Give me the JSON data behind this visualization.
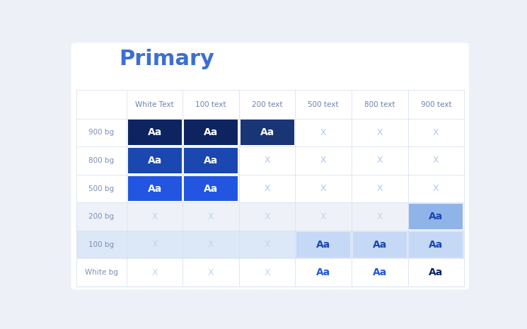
{
  "title": "Primary",
  "title_color": "#3b6fd4",
  "col_headers": [
    "White Text",
    "100 text",
    "200 text",
    "500 text",
    "800 text",
    "900 text"
  ],
  "row_headers": [
    "900 bg",
    "800 bg",
    "500 bg",
    "200 bg",
    "100 bg",
    "White bg"
  ],
  "background": "#edf1f7",
  "table_bg": "#ffffff",
  "grid_color": "#d8e3f0",
  "header_text_color": "#6b82aa",
  "row_label_color": "#7b90b5",
  "cells": [
    [
      {
        "type": "aa",
        "bg": "#0d2461",
        "text_color": "#ffffff"
      },
      {
        "type": "aa",
        "bg": "#0d2461",
        "text_color": "#ffffff"
      },
      {
        "type": "aa",
        "bg": "#1a3575",
        "text_color": "#ffffff"
      },
      {
        "type": "x",
        "bg": null,
        "text_color": "#b0c8e8"
      },
      {
        "type": "x",
        "bg": null,
        "text_color": "#b0c8e8"
      },
      {
        "type": "x",
        "bg": null,
        "text_color": "#b0c8e8"
      }
    ],
    [
      {
        "type": "aa",
        "bg": "#1a47b0",
        "text_color": "#ffffff"
      },
      {
        "type": "aa",
        "bg": "#1a47b0",
        "text_color": "#ffffff"
      },
      {
        "type": "x",
        "bg": null,
        "text_color": "#b0c8e8"
      },
      {
        "type": "x",
        "bg": null,
        "text_color": "#b0c8e8"
      },
      {
        "type": "x",
        "bg": null,
        "text_color": "#b0c8e8"
      },
      {
        "type": "x",
        "bg": null,
        "text_color": "#b0c8e8"
      }
    ],
    [
      {
        "type": "aa",
        "bg": "#2255e0",
        "text_color": "#ffffff"
      },
      {
        "type": "aa",
        "bg": "#2255e0",
        "text_color": "#ffffff"
      },
      {
        "type": "x",
        "bg": null,
        "text_color": "#b0c8e8"
      },
      {
        "type": "x",
        "bg": null,
        "text_color": "#b0c8e8"
      },
      {
        "type": "x",
        "bg": null,
        "text_color": "#b0c8e8"
      },
      {
        "type": "x",
        "bg": null,
        "text_color": "#b0c8e8"
      }
    ],
    [
      {
        "type": "x",
        "bg": null,
        "text_color": "#c0d4ee"
      },
      {
        "type": "x",
        "bg": null,
        "text_color": "#c0d4ee"
      },
      {
        "type": "x",
        "bg": null,
        "text_color": "#c0d4ee"
      },
      {
        "type": "x",
        "bg": null,
        "text_color": "#c0d4ee"
      },
      {
        "type": "x",
        "bg": null,
        "text_color": "#c0d4ee"
      },
      {
        "type": "aa",
        "bg": "#90b4e8",
        "text_color": "#1a47b0"
      }
    ],
    [
      {
        "type": "x",
        "bg": null,
        "text_color": "#c0d4ee"
      },
      {
        "type": "x",
        "bg": null,
        "text_color": "#c0d4ee"
      },
      {
        "type": "x",
        "bg": null,
        "text_color": "#c0d4ee"
      },
      {
        "type": "aa",
        "bg": "#c5d8f5",
        "text_color": "#1a47b0"
      },
      {
        "type": "aa",
        "bg": "#c5d8f5",
        "text_color": "#1a47b0"
      },
      {
        "type": "aa",
        "bg": "#c5d8f5",
        "text_color": "#1a47b0"
      }
    ],
    [
      {
        "type": "x",
        "bg": null,
        "text_color": "#c0d4ee"
      },
      {
        "type": "x",
        "bg": null,
        "text_color": "#c0d4ee"
      },
      {
        "type": "x",
        "bg": null,
        "text_color": "#c0d4ee"
      },
      {
        "type": "aa",
        "bg": null,
        "text_color": "#2255e0"
      },
      {
        "type": "aa",
        "bg": null,
        "text_color": "#2255e0"
      },
      {
        "type": "aa",
        "bg": null,
        "text_color": "#0d2461"
      }
    ]
  ],
  "row_bg_colors": [
    null,
    null,
    null,
    "#eef2f8",
    "#dce8f8",
    null
  ],
  "figsize": [
    7.45,
    4.65
  ],
  "dpi": 100
}
